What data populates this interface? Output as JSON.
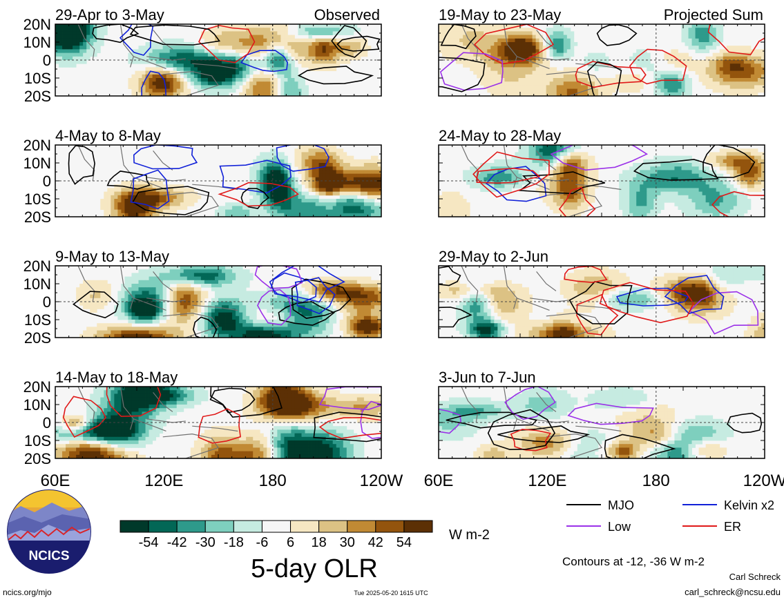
{
  "column_titles": {
    "left": "Observed",
    "right": "Projected Sum"
  },
  "lat_ticks": [
    "20N",
    "10N",
    "0",
    "10S",
    "20S"
  ],
  "lon_ticks": [
    "60E",
    "120E",
    "180",
    "120W"
  ],
  "panels": [
    {
      "label": "29-Apr to 3-May",
      "column": "Observed",
      "seed": 11
    },
    {
      "label": "4-May to 8-May",
      "column": "Observed",
      "seed": 23
    },
    {
      "label": "9-May to 13-May",
      "column": "Observed",
      "seed": 37
    },
    {
      "label": "14-May to 18-May",
      "column": "Observed",
      "seed": 51
    },
    {
      "label": "19-May to 23-May",
      "column": "Projected Sum",
      "seed": 67
    },
    {
      "label": "24-May to 28-May",
      "column": "Projected Sum",
      "seed": 79
    },
    {
      "label": "29-May to 2-Jun",
      "column": "Projected Sum",
      "seed": 89
    },
    {
      "label": "3-Jun to 7-Jun",
      "column": "Projected Sum",
      "seed": 97
    }
  ],
  "colorbar": {
    "title": "5-day OLR",
    "units": "W m-2",
    "tick_labels": [
      "-54",
      "-42",
      "-30",
      "-18",
      "-6",
      "6",
      "18",
      "30",
      "42",
      "54"
    ],
    "colors": [
      "#00392a",
      "#026756",
      "#2e9a8b",
      "#7ecfbe",
      "#c6ebe1",
      "#f6f6f6",
      "#f6e7c2",
      "#dcc284",
      "#c18a34",
      "#93540d",
      "#5c3005"
    ]
  },
  "legend": {
    "items": [
      {
        "label": "MJO",
        "color": "#000000"
      },
      {
        "label": "Kelvin x2",
        "color": "#1020d8"
      },
      {
        "label": "Low",
        "color": "#9a30e8"
      },
      {
        "label": "ER",
        "color": "#e01818"
      }
    ],
    "contour_note": "Contours at -12, -36 W m-2"
  },
  "footer": {
    "logo_text": "NCICS",
    "url": "ncics.org/mjo",
    "timestamp": "Tue 2025-05-20 1615 UTC",
    "author": "Carl Schreck",
    "email": "carl_schreck@ncsu.edu"
  },
  "chart_data": {
    "type": "heatmap",
    "title": "5-day OLR",
    "units": "W m-2",
    "xlabel": "",
    "ylabel": "",
    "x_ticks": [
      "60E",
      "120E",
      "180",
      "120W"
    ],
    "y_ticks": [
      "20N",
      "10N",
      "0",
      "10S",
      "20S"
    ],
    "xlim": [
      "60E",
      "120W"
    ],
    "ylim": [
      "20S",
      "20N"
    ],
    "color_levels": [
      -54,
      -42,
      -30,
      -18,
      -6,
      6,
      18,
      30,
      42,
      54
    ],
    "panels": [
      "29-Apr to 3-May",
      "4-May to 8-May",
      "9-May to 13-May",
      "14-May to 18-May",
      "19-May to 23-May",
      "24-May to 28-May",
      "29-May to 2-Jun",
      "3-Jun to 7-Jun"
    ],
    "contour_series": [
      "MJO",
      "Kelvin x2",
      "Low",
      "ER"
    ],
    "contour_levels": [
      -12,
      -36
    ]
  }
}
